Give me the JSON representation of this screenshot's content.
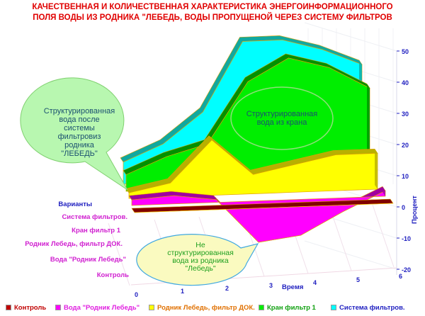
{
  "title_lines": [
    "КАЧЕСТВЕННАЯ И КОЛИЧЕСТВЕННАЯ ХАРАКТЕРИСТИКА ЭНЕРГОИНФОРМАЦИОННОГО",
    "ПОЛЯ ВОДЫ ИЗ РОДНИКА \"ЛЕБЕДЬ, ВОДЫ ПРОПУЩЕНОЙ ЧЕРЕЗ СИСТЕМУ ФИЛЬТРОВ"
  ],
  "chart_data": {
    "type": "area",
    "subtype": "3d-area",
    "x": [
      0,
      1,
      2,
      3,
      4,
      5,
      6
    ],
    "xlabel": "Время",
    "ylabel": "Процент",
    "zlabel": "Варианты",
    "ylim": [
      -20,
      50
    ],
    "yticks": [
      -20,
      -10,
      0,
      10,
      20,
      30,
      40,
      50
    ],
    "xticks": [
      0,
      1,
      2,
      3,
      4,
      5,
      6
    ],
    "series": [
      {
        "name": "Контроль",
        "color": "#c00000",
        "values": [
          0,
          0,
          0,
          0,
          0,
          0,
          0
        ]
      },
      {
        "name": "Вода \"Родник Лебедь\"",
        "color": "#ff00ff",
        "values": [
          2,
          3,
          1,
          -15,
          -13,
          -5,
          2
        ]
      },
      {
        "name": "Родник Лебедь, фильтр ДОК.",
        "color": "#ffff00",
        "values": [
          2,
          5,
          20,
          7,
          10,
          13,
          13
        ]
      },
      {
        "name": "Кран фильтр 1",
        "color": "#00ee00",
        "values": [
          6,
          12,
          16,
          38,
          46,
          42,
          34
        ]
      },
      {
        "name": "Система фильтров.",
        "color": "#00ffff",
        "values": [
          8,
          14,
          25,
          50,
          50,
          46,
          40
        ]
      }
    ],
    "depth_categories": [
      "Система  фильтров.",
      "Кран фильтр 1",
      "Родник Лебедь, фильтр ДОК.",
      "Вода \"Родник Лебедь\"",
      "Контроль"
    ],
    "legend_position": "bottom",
    "annotations": [
      "Структурированная вода после системы фильтровиз родника \"ЛЕБЕДЬ\"",
      "Структурированная вода из крана",
      "Не структурированная вода из родника \"Лебедь\""
    ]
  },
  "callouts": {
    "left": [
      "Структурированная",
      "вода после",
      "системы",
      "фильтровиз",
      "родника",
      "\"ЛЕБЕДЬ\""
    ],
    "center": [
      "Структурированная",
      "вода из крана"
    ],
    "bottom": [
      "Не",
      "структурированная",
      "вода из родника",
      "\"Лебедь\""
    ]
  }
}
